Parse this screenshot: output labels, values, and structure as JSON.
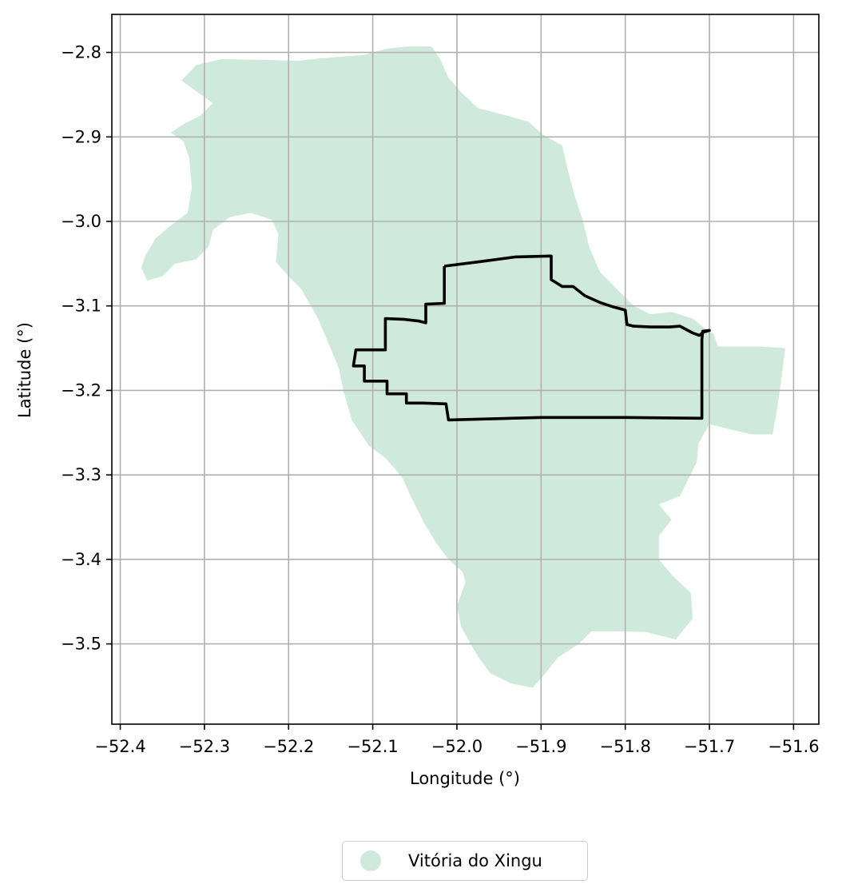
{
  "chart_data": {
    "type": "map",
    "xlabel": "Longitude (°)",
    "ylabel": "Latitude (°)",
    "xlim": [
      -52.41,
      -51.57
    ],
    "ylim": [
      -3.595,
      -2.755
    ],
    "xticks": [
      -52.4,
      -52.3,
      -52.2,
      -52.1,
      -52.0,
      -51.9,
      -51.8,
      -51.7,
      -51.6
    ],
    "xtick_labels": [
      "−52.4",
      "−52.3",
      "−52.2",
      "−52.1",
      "−52.0",
      "−51.9",
      "−51.8",
      "−51.7",
      "−51.6"
    ],
    "yticks": [
      -2.8,
      -2.9,
      -3.0,
      -3.1,
      -3.2,
      -3.3,
      -3.4,
      -3.5
    ],
    "ytick_labels": [
      "−2.8",
      "−2.9",
      "−3.0",
      "−3.1",
      "−3.2",
      "−3.3",
      "−3.4",
      "−3.5"
    ],
    "grid": true,
    "legend_position": "bottom-center",
    "municipality": {
      "name": "Vitória do Xingu",
      "color": "#cfeadd",
      "outline": [
        [
          -52.327,
          -2.833
        ],
        [
          -52.31,
          -2.815
        ],
        [
          -52.28,
          -2.808
        ],
        [
          -52.22,
          -2.809
        ],
        [
          -52.19,
          -2.81
        ],
        [
          -52.15,
          -2.806
        ],
        [
          -52.11,
          -2.803
        ],
        [
          -52.085,
          -2.796
        ],
        [
          -52.06,
          -2.793
        ],
        [
          -52.03,
          -2.793
        ],
        [
          -52.02,
          -2.808
        ],
        [
          -52.01,
          -2.83
        ],
        [
          -51.995,
          -2.847
        ],
        [
          -51.975,
          -2.866
        ],
        [
          -51.94,
          -2.875
        ],
        [
          -51.915,
          -2.882
        ],
        [
          -51.897,
          -2.898
        ],
        [
          -51.875,
          -2.91
        ],
        [
          -51.868,
          -2.94
        ],
        [
          -51.86,
          -2.97
        ],
        [
          -51.85,
          -3.0
        ],
        [
          -51.843,
          -3.03
        ],
        [
          -51.83,
          -3.06
        ],
        [
          -51.81,
          -3.08
        ],
        [
          -51.79,
          -3.1
        ],
        [
          -51.77,
          -3.11
        ],
        [
          -51.745,
          -3.107
        ],
        [
          -51.72,
          -3.115
        ],
        [
          -51.705,
          -3.127
        ],
        [
          -51.695,
          -3.133
        ],
        [
          -51.69,
          -3.148
        ],
        [
          -51.675,
          -3.148
        ],
        [
          -51.64,
          -3.148
        ],
        [
          -51.61,
          -3.15
        ],
        [
          -51.615,
          -3.19
        ],
        [
          -51.62,
          -3.225
        ],
        [
          -51.625,
          -3.252
        ],
        [
          -51.65,
          -3.252
        ],
        [
          -51.68,
          -3.245
        ],
        [
          -51.7,
          -3.24
        ],
        [
          -51.713,
          -3.263
        ],
        [
          -51.715,
          -3.285
        ],
        [
          -51.725,
          -3.305
        ],
        [
          -51.735,
          -3.325
        ],
        [
          -51.76,
          -3.335
        ],
        [
          -51.745,
          -3.353
        ],
        [
          -51.76,
          -3.372
        ],
        [
          -51.76,
          -3.4
        ],
        [
          -51.745,
          -3.418
        ],
        [
          -51.722,
          -3.44
        ],
        [
          -51.72,
          -3.47
        ],
        [
          -51.74,
          -3.495
        ],
        [
          -51.775,
          -3.486
        ],
        [
          -51.81,
          -3.485
        ],
        [
          -51.84,
          -3.485
        ],
        [
          -51.855,
          -3.5
        ],
        [
          -51.88,
          -3.516
        ],
        [
          -51.895,
          -3.535
        ],
        [
          -51.91,
          -3.552
        ],
        [
          -51.935,
          -3.547
        ],
        [
          -51.96,
          -3.535
        ],
        [
          -51.975,
          -3.515
        ],
        [
          -51.995,
          -3.48
        ],
        [
          -52.0,
          -3.455
        ],
        [
          -51.99,
          -3.427
        ],
        [
          -51.993,
          -3.415
        ],
        [
          -52.01,
          -3.4
        ],
        [
          -52.025,
          -3.38
        ],
        [
          -52.04,
          -3.355
        ],
        [
          -52.055,
          -3.325
        ],
        [
          -52.065,
          -3.303
        ],
        [
          -52.085,
          -3.28
        ],
        [
          -52.105,
          -3.265
        ],
        [
          -52.125,
          -3.235
        ],
        [
          -52.135,
          -3.2
        ],
        [
          -52.14,
          -3.175
        ],
        [
          -52.15,
          -3.15
        ],
        [
          -52.165,
          -3.115
        ],
        [
          -52.185,
          -3.08
        ],
        [
          -52.2,
          -3.065
        ],
        [
          -52.215,
          -3.048
        ],
        [
          -52.212,
          -3.015
        ],
        [
          -52.22,
          -2.998
        ],
        [
          -52.245,
          -2.99
        ],
        [
          -52.27,
          -2.995
        ],
        [
          -52.29,
          -3.01
        ],
        [
          -52.295,
          -3.03
        ],
        [
          -52.31,
          -3.045
        ],
        [
          -52.335,
          -3.05
        ],
        [
          -52.35,
          -3.065
        ],
        [
          -52.368,
          -3.07
        ],
        [
          -52.375,
          -3.055
        ],
        [
          -52.37,
          -3.04
        ],
        [
          -52.358,
          -3.02
        ],
        [
          -52.34,
          -3.005
        ],
        [
          -52.32,
          -2.99
        ],
        [
          -52.315,
          -2.96
        ],
        [
          -52.318,
          -2.925
        ],
        [
          -52.325,
          -2.905
        ],
        [
          -52.34,
          -2.895
        ],
        [
          -52.325,
          -2.885
        ],
        [
          -52.305,
          -2.875
        ],
        [
          -52.29,
          -2.86
        ],
        [
          -52.325,
          -2.835
        ]
      ]
    },
    "boundary": {
      "color": "#000000",
      "path": [
        [
          -52.015,
          -3.053
        ],
        [
          -51.975,
          -3.048
        ],
        [
          -51.93,
          -3.042
        ],
        [
          -51.888,
          -3.041
        ],
        [
          -51.888,
          -3.069
        ],
        [
          -51.875,
          -3.077
        ],
        [
          -51.862,
          -3.077
        ],
        [
          -51.848,
          -3.088
        ],
        [
          -51.83,
          -3.096
        ],
        [
          -51.815,
          -3.101
        ],
        [
          -51.8,
          -3.105
        ],
        [
          -51.798,
          -3.122
        ],
        [
          -51.79,
          -3.124
        ],
        [
          -51.77,
          -3.125
        ],
        [
          -51.747,
          -3.125
        ],
        [
          -51.735,
          -3.124
        ],
        [
          -51.72,
          -3.132
        ],
        [
          -51.712,
          -3.135
        ],
        [
          -51.707,
          -3.131
        ],
        [
          -51.7,
          -3.129
        ],
        [
          -51.708,
          -3.13
        ],
        [
          -51.709,
          -3.14
        ],
        [
          -51.709,
          -3.233
        ],
        [
          -51.8,
          -3.232
        ],
        [
          -51.9,
          -3.232
        ],
        [
          -52.01,
          -3.235
        ],
        [
          -52.013,
          -3.216
        ],
        [
          -52.04,
          -3.215
        ],
        [
          -52.06,
          -3.215
        ],
        [
          -52.06,
          -3.204
        ],
        [
          -52.083,
          -3.204
        ],
        [
          -52.083,
          -3.189
        ],
        [
          -52.11,
          -3.189
        ],
        [
          -52.11,
          -3.171
        ],
        [
          -52.123,
          -3.171
        ],
        [
          -52.12,
          -3.152
        ],
        [
          -52.085,
          -3.152
        ],
        [
          -52.085,
          -3.115
        ],
        [
          -52.062,
          -3.116
        ],
        [
          -52.045,
          -3.118
        ],
        [
          -52.037,
          -3.12
        ],
        [
          -52.037,
          -3.098
        ],
        [
          -52.015,
          -3.097
        ],
        [
          -52.015,
          -3.053
        ]
      ]
    }
  }
}
